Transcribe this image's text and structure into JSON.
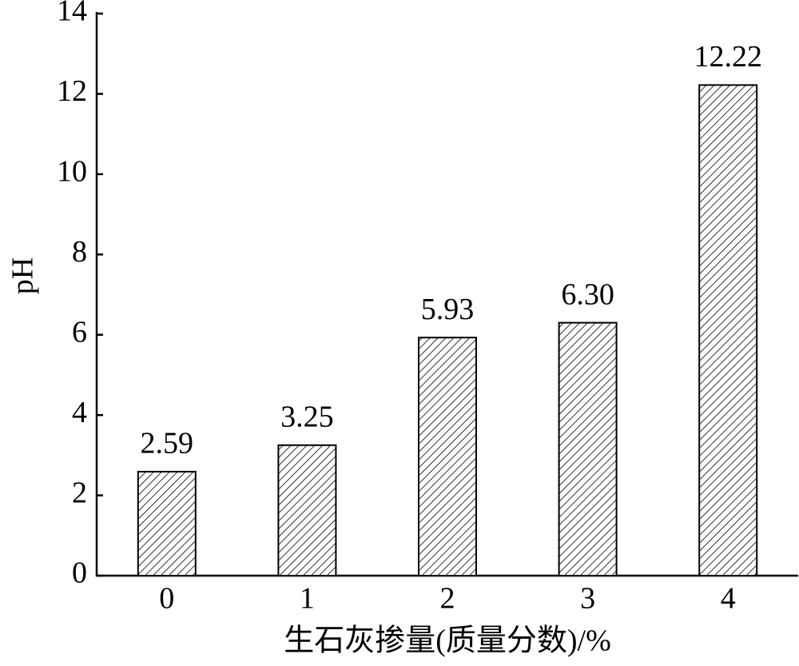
{
  "chart_data": {
    "type": "bar",
    "x_label": "生石灰掺量(质量分数)/%",
    "y_label": "pH",
    "categories": [
      "0",
      "1",
      "2",
      "3",
      "4"
    ],
    "values": [
      2.59,
      3.25,
      5.93,
      6.3,
      12.22
    ],
    "value_labels": [
      "2.59",
      "3.25",
      "5.93",
      "6.30",
      "12.22"
    ],
    "ylim": [
      0,
      14
    ],
    "yticks": [
      0,
      2,
      4,
      6,
      8,
      10,
      12,
      14
    ],
    "grid": false,
    "color": "#000000"
  }
}
